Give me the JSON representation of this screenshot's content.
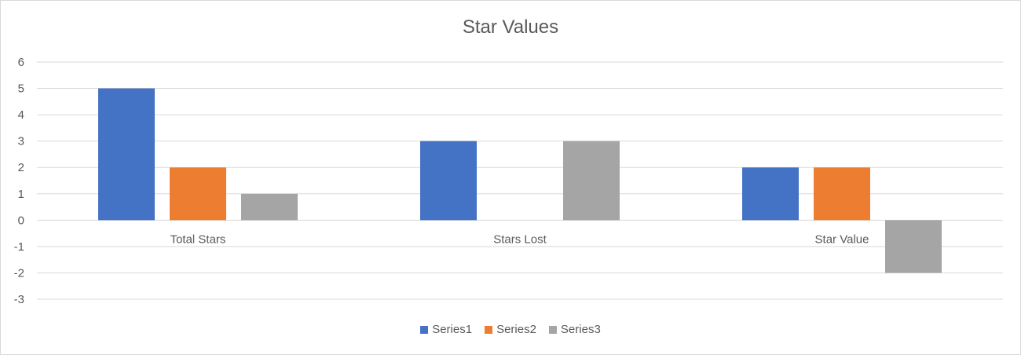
{
  "chart_data": {
    "type": "bar",
    "title": "Star Values",
    "categories": [
      "Total Stars",
      "Stars Lost",
      "Star Value"
    ],
    "series": [
      {
        "name": "Series1",
        "values": [
          5,
          3,
          2
        ],
        "color": "#4472C4"
      },
      {
        "name": "Series2",
        "values": [
          2,
          0,
          2
        ],
        "color": "#ED7D31"
      },
      {
        "name": "Series3",
        "values": [
          1,
          3,
          -2
        ],
        "color": "#A5A5A5"
      }
    ],
    "ylim": [
      -3,
      6
    ],
    "yticks": [
      6,
      5,
      4,
      3,
      2,
      1,
      0,
      -1,
      -2,
      -3
    ],
    "grid": true,
    "legend_position": "bottom"
  }
}
